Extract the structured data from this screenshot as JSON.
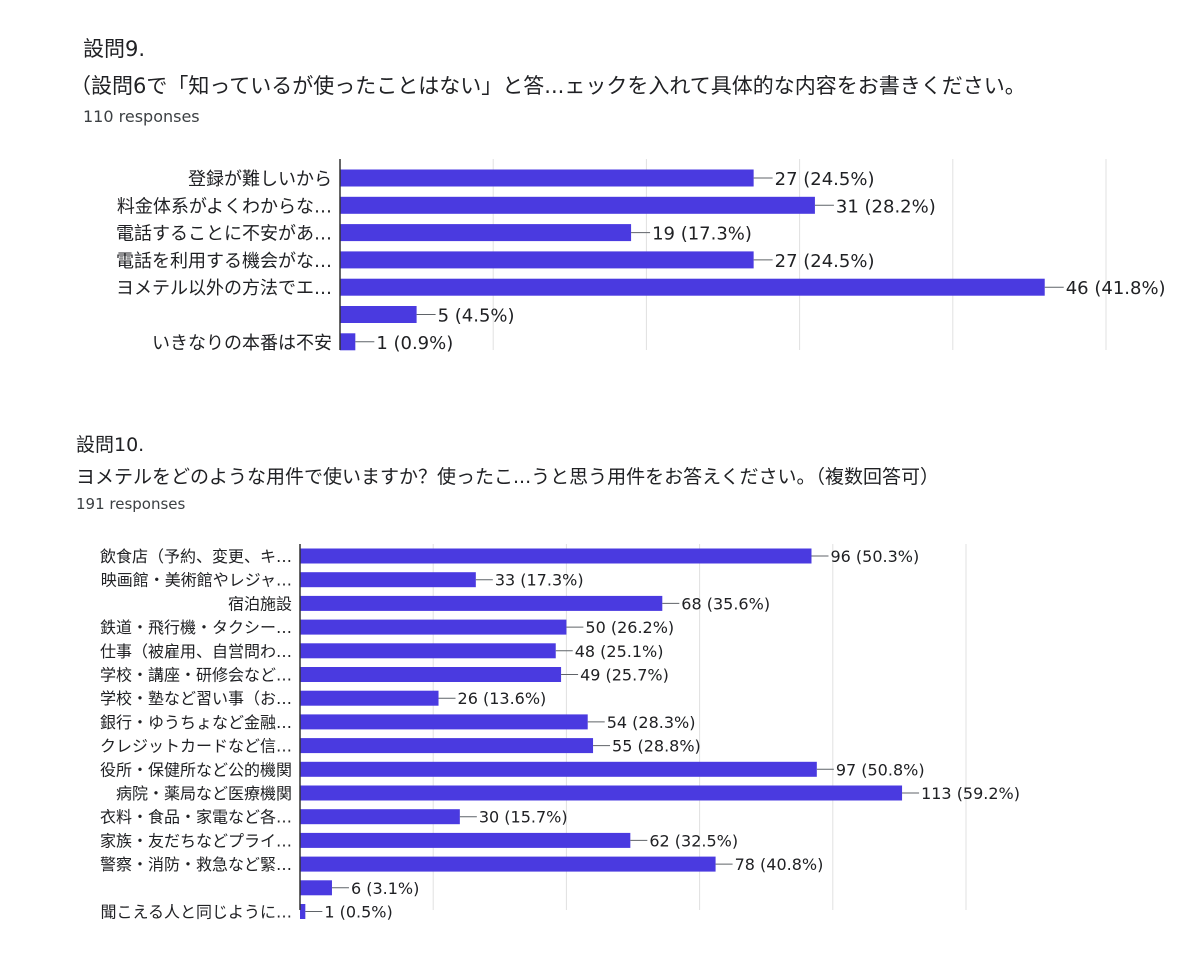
{
  "q9": {
    "number": "設問9.",
    "question": "（設問6で「知っているが使ったことはない」と答...ェックを入れて具体的な内容をお書きください。",
    "responses": "110 responses"
  },
  "q10": {
    "number": "設問10.",
    "question": "ヨメテルをどのような用件で使いますか？使ったこ...うと思う用件をお答えください。（複数回答可）",
    "responses": "191 responses"
  },
  "chart_data": [
    {
      "type": "bar",
      "orientation": "horizontal",
      "bar_color": "#4a3ae0",
      "grid": true,
      "categories": [
        "登録が難しいから",
        "料金体系がよくわからな…",
        "電話することに不安があ…",
        "電話を利用する機会がな…",
        "ヨメテル以外の方法でエ…",
        "",
        "いきなりの本番は不安"
      ],
      "values": [
        27,
        31,
        19,
        27,
        46,
        5,
        1
      ],
      "value_labels": [
        "27 (24.5%)",
        "31 (28.2%)",
        "19 (17.3%)",
        "27 (24.5%)",
        "46 (41.8%)",
        "5 (4.5%)",
        "1 (0.9%)"
      ],
      "xlim": [
        0,
        50
      ]
    },
    {
      "type": "bar",
      "orientation": "horizontal",
      "bar_color": "#4a3ae0",
      "grid": true,
      "categories": [
        "飲食店（予約、変更、キ…",
        "映画館・美術館やレジャ…",
        "宿泊施設",
        "鉄道・飛行機・タクシー…",
        "仕事（被雇用、自営問わ…",
        "学校・講座・研修会など…",
        "学校・塾など習い事（お…",
        "銀行・ゆうちょなど金融…",
        "クレジットカードなど信…",
        "役所・保健所など公的機関",
        "病院・薬局など医療機関",
        "衣料・食品・家電など各…",
        "家族・友だちなどプライ…",
        "警察・消防・救急など緊…",
        "",
        "聞こえる人と同じように…"
      ],
      "values": [
        96,
        33,
        68,
        50,
        48,
        49,
        26,
        54,
        55,
        97,
        113,
        30,
        62,
        78,
        6,
        1
      ],
      "value_labels": [
        "96 (50.3%)",
        "33 (17.3%)",
        "68 (35.6%)",
        "50 (26.2%)",
        "48 (25.1%)",
        "49 (25.7%)",
        "26 (13.6%)",
        "54 (28.3%)",
        "55 (28.8%)",
        "97 (50.8%)",
        "113 (59.2%)",
        "30 (15.7%)",
        "62 (32.5%)",
        "78 (40.8%)",
        "6 (3.1%)",
        "1 (0.5%)"
      ],
      "xlim": [
        0,
        125
      ]
    }
  ]
}
